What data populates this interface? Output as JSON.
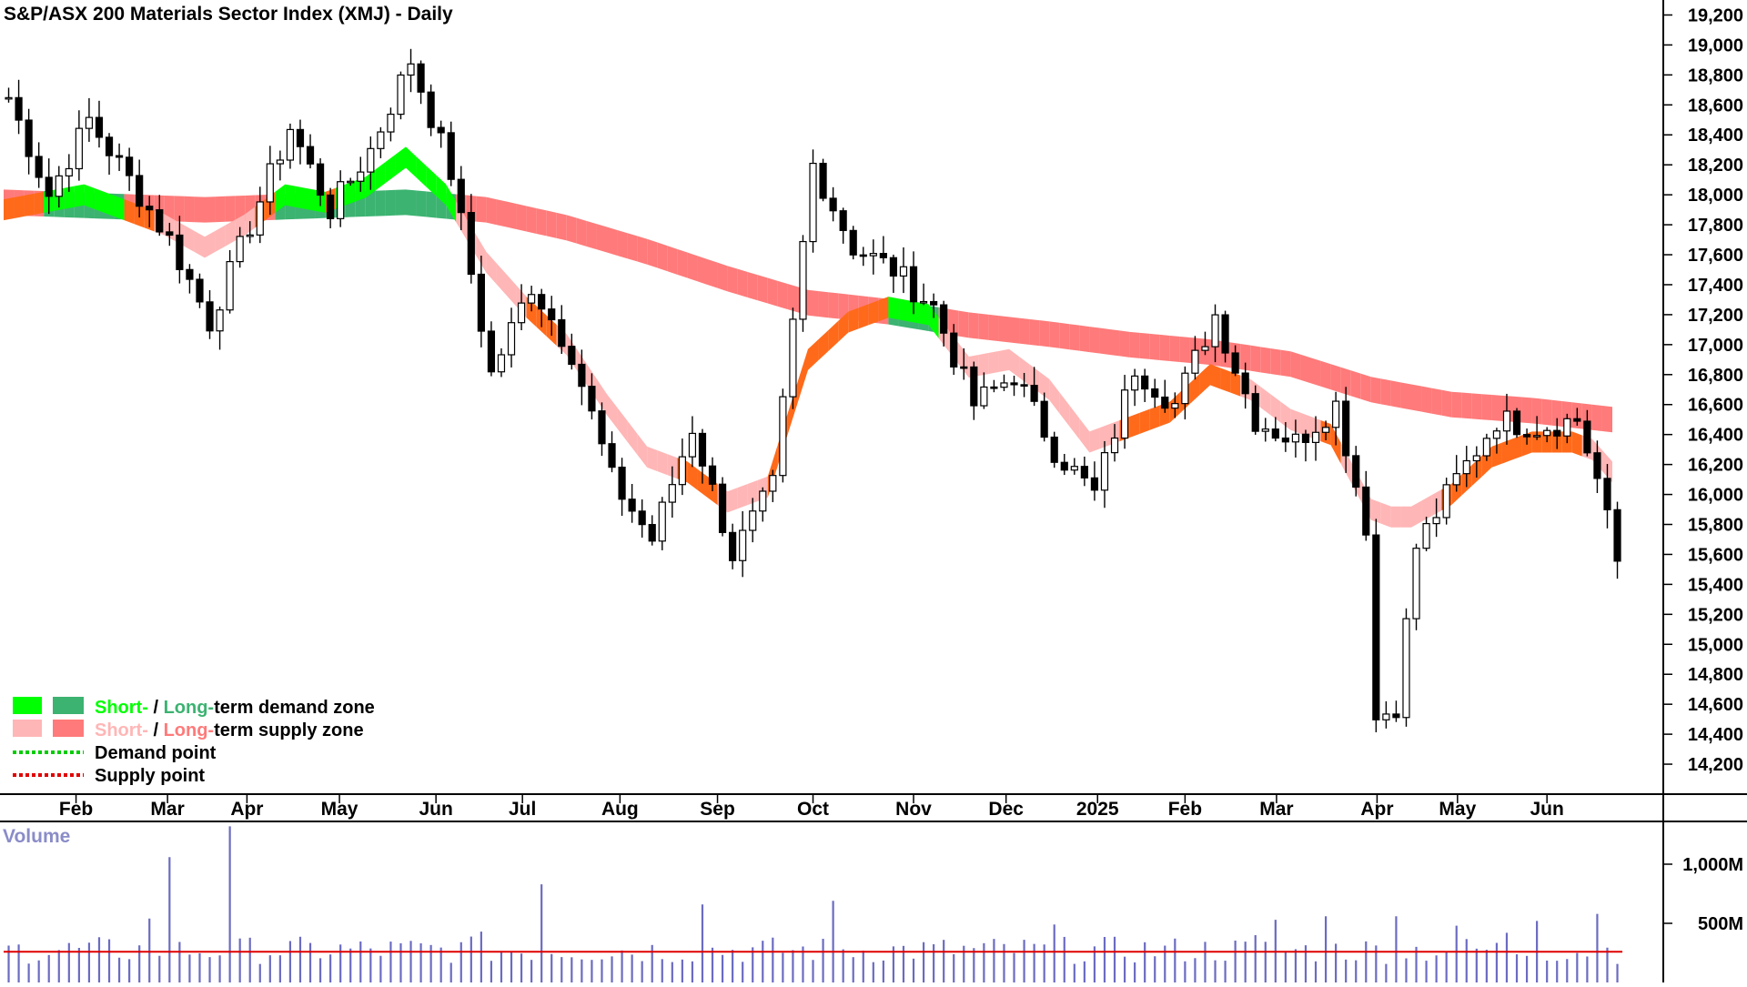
{
  "chart_data": {
    "type": "candlestick",
    "title": "S&P/ASX 200 Materials Sector Index (XMJ) - Daily",
    "price_axis": {
      "ticks": [
        "19,200",
        "19,000",
        "18,800",
        "18,600",
        "18,400",
        "18,200",
        "18,000",
        "17,800",
        "17,600",
        "17,400",
        "17,200",
        "17,000",
        "16,800",
        "16,600",
        "16,400",
        "16,200",
        "16,000",
        "15,800",
        "15,600",
        "15,400",
        "15,200",
        "15,000",
        "14,800",
        "14,600",
        "14,400",
        "14,200"
      ],
      "ylim": [
        14000,
        19300
      ]
    },
    "months": [
      "Feb",
      "Mar",
      "Apr",
      "May",
      "Jun",
      "Jul",
      "Aug",
      "Sep",
      "Oct",
      "Nov",
      "Dec",
      "2025",
      "Feb",
      "Mar",
      "Apr",
      "May",
      "Jun"
    ],
    "month_positions": [
      7.2,
      16.3,
      24.2,
      33.4,
      43.0,
      51.6,
      61.3,
      71.0,
      80.5,
      90.5,
      99.7,
      108.8,
      117.5,
      126.6,
      136.6,
      144.6,
      153.5
    ],
    "price_keypoints": [
      [
        0,
        18650
      ],
      [
        4,
        18000
      ],
      [
        8,
        18500
      ],
      [
        12,
        18100
      ],
      [
        16,
        17700
      ],
      [
        20,
        17150
      ],
      [
        24,
        17800
      ],
      [
        28,
        18450
      ],
      [
        32,
        17900
      ],
      [
        36,
        18300
      ],
      [
        40,
        18900
      ],
      [
        44,
        18150
      ],
      [
        48,
        16800
      ],
      [
        52,
        17400
      ],
      [
        56,
        16950
      ],
      [
        60,
        16100
      ],
      [
        64,
        15700
      ],
      [
        68,
        16450
      ],
      [
        72,
        15600
      ],
      [
        76,
        16050
      ],
      [
        80,
        18200
      ],
      [
        84,
        17650
      ],
      [
        88,
        17500
      ],
      [
        92,
        17250
      ],
      [
        96,
        16600
      ],
      [
        100,
        16800
      ],
      [
        104,
        16300
      ],
      [
        108,
        16000
      ],
      [
        112,
        16850
      ],
      [
        116,
        16600
      ],
      [
        120,
        17200
      ],
      [
        124,
        16500
      ],
      [
        128,
        16350
      ],
      [
        132,
        16600
      ],
      [
        135,
        15800
      ],
      [
        136,
        14500
      ],
      [
        138,
        14600
      ],
      [
        140,
        15650
      ],
      [
        144,
        16100
      ],
      [
        148,
        16500
      ],
      [
        152,
        16450
      ],
      [
        156,
        16500
      ],
      [
        158,
        16100
      ],
      [
        160,
        15550
      ]
    ],
    "short_ema_keypoints": [
      [
        0,
        17900
      ],
      [
        8,
        18000
      ],
      [
        12,
        17900
      ],
      [
        16,
        17800
      ],
      [
        20,
        17650
      ],
      [
        24,
        17800
      ],
      [
        28,
        18000
      ],
      [
        32,
        17950
      ],
      [
        36,
        18050
      ],
      [
        40,
        18250
      ],
      [
        44,
        18000
      ],
      [
        48,
        17550
      ],
      [
        52,
        17250
      ],
      [
        56,
        17000
      ],
      [
        60,
        16600
      ],
      [
        64,
        16250
      ],
      [
        68,
        16150
      ],
      [
        72,
        15950
      ],
      [
        76,
        16050
      ],
      [
        80,
        16900
      ],
      [
        84,
        17150
      ],
      [
        88,
        17250
      ],
      [
        92,
        17200
      ],
      [
        96,
        16850
      ],
      [
        100,
        16900
      ],
      [
        104,
        16700
      ],
      [
        108,
        16350
      ],
      [
        112,
        16450
      ],
      [
        116,
        16550
      ],
      [
        120,
        16800
      ],
      [
        124,
        16700
      ],
      [
        128,
        16500
      ],
      [
        132,
        16400
      ],
      [
        136,
        15900
      ],
      [
        138,
        15850
      ],
      [
        140,
        15850
      ],
      [
        144,
        16000
      ],
      [
        148,
        16250
      ],
      [
        152,
        16350
      ],
      [
        156,
        16350
      ],
      [
        158,
        16300
      ],
      [
        160,
        16150
      ]
    ],
    "long_ema_keypoints": [
      [
        0,
        17950
      ],
      [
        20,
        17900
      ],
      [
        40,
        17950
      ],
      [
        48,
        17900
      ],
      [
        56,
        17780
      ],
      [
        64,
        17620
      ],
      [
        72,
        17440
      ],
      [
        80,
        17280
      ],
      [
        88,
        17220
      ],
      [
        96,
        17130
      ],
      [
        104,
        17070
      ],
      [
        112,
        17000
      ],
      [
        120,
        16950
      ],
      [
        128,
        16870
      ],
      [
        136,
        16700
      ],
      [
        144,
        16600
      ],
      [
        152,
        16560
      ],
      [
        160,
        16500
      ]
    ],
    "band_widths": {
      "short": 140,
      "long": 170
    },
    "n_bars": 161,
    "volume": {
      "title": "Volume",
      "ticks": [
        "1,000M",
        "500M"
      ],
      "ylim": [
        0,
        1300
      ],
      "average": 260,
      "spikes": [
        [
          14,
          540
        ],
        [
          16,
          1060
        ],
        [
          22,
          1320
        ],
        [
          47,
          430
        ],
        [
          53,
          830
        ],
        [
          69,
          660
        ],
        [
          82,
          690
        ],
        [
          104,
          490
        ],
        [
          124,
          400
        ],
        [
          126,
          530
        ],
        [
          131,
          560
        ],
        [
          138,
          560
        ],
        [
          144,
          480
        ],
        [
          149,
          420
        ],
        [
          152,
          520
        ],
        [
          158,
          580
        ]
      ]
    },
    "legend": [
      {
        "a": "Short-",
        "sep": " / ",
        "b": "Long-",
        "rest": "term demand zone"
      },
      {
        "a": "Short-",
        "sep": " / ",
        "b": "Long-",
        "rest": "term supply zone"
      },
      {
        "text": "Demand point"
      },
      {
        "text": "Supply point"
      }
    ],
    "colors": {
      "demand_short": "#00ff00",
      "demand_long": "#3cb371",
      "supply_short": "#ffb6b6",
      "supply_long": "#ff7a7a",
      "short_vs_long_transition": "#ff6a1a",
      "demand_point": "#00cc00",
      "supply_point": "#e00000",
      "volume_bar": "#6b6bc2",
      "volume_average": "#e00000",
      "volume_title": "#8a8cc8"
    }
  }
}
